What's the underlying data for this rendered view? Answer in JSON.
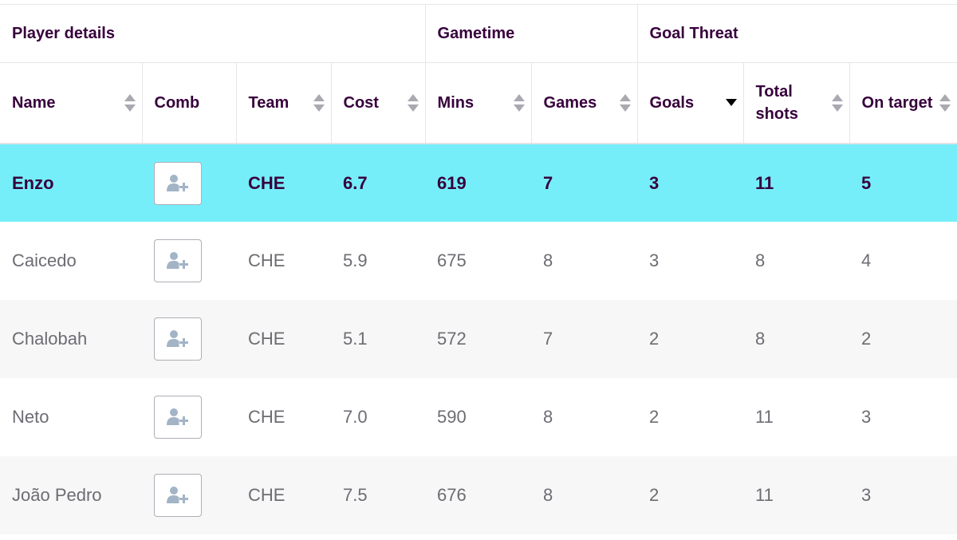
{
  "table": {
    "group_headers": {
      "player_details": "Player details",
      "gametime": "Gametime",
      "goal_threat": "Goal Threat"
    },
    "columns": {
      "name": "Name",
      "comb": "Comb",
      "team": "Team",
      "cost": "Cost",
      "mins": "Mins",
      "games": "Games",
      "goals": "Goals",
      "total_shots": "Total shots",
      "on_target": "On target"
    },
    "sorted_column": "Goals",
    "sort_direction": "descending",
    "rows": [
      {
        "name": "Enzo",
        "team": "CHE",
        "cost": "6.7",
        "mins": "619",
        "games": "7",
        "goals": "3",
        "total_shots": "11",
        "on_target": "5",
        "highlighted": true
      },
      {
        "name": "Caicedo",
        "team": "CHE",
        "cost": "5.9",
        "mins": "675",
        "games": "8",
        "goals": "3",
        "total_shots": "8",
        "on_target": "4",
        "highlighted": false
      },
      {
        "name": "Chalobah",
        "team": "CHE",
        "cost": "5.1",
        "mins": "572",
        "games": "7",
        "goals": "2",
        "total_shots": "8",
        "on_target": "2",
        "highlighted": false
      },
      {
        "name": "Neto",
        "team": "CHE",
        "cost": "7.0",
        "mins": "590",
        "games": "8",
        "goals": "2",
        "total_shots": "11",
        "on_target": "3",
        "highlighted": false
      },
      {
        "name": "João Pedro",
        "team": "CHE",
        "cost": "7.5",
        "mins": "676",
        "games": "8",
        "goals": "2",
        "total_shots": "11",
        "on_target": "3",
        "highlighted": false
      }
    ]
  },
  "icons": {
    "sort": "sort-arrows-icon",
    "comb": "add-user-icon"
  },
  "colors": {
    "highlight_row": "#76eefa",
    "header_text": "#37003c",
    "body_text": "#6c6c73",
    "stripe": "#f7f7f7"
  }
}
